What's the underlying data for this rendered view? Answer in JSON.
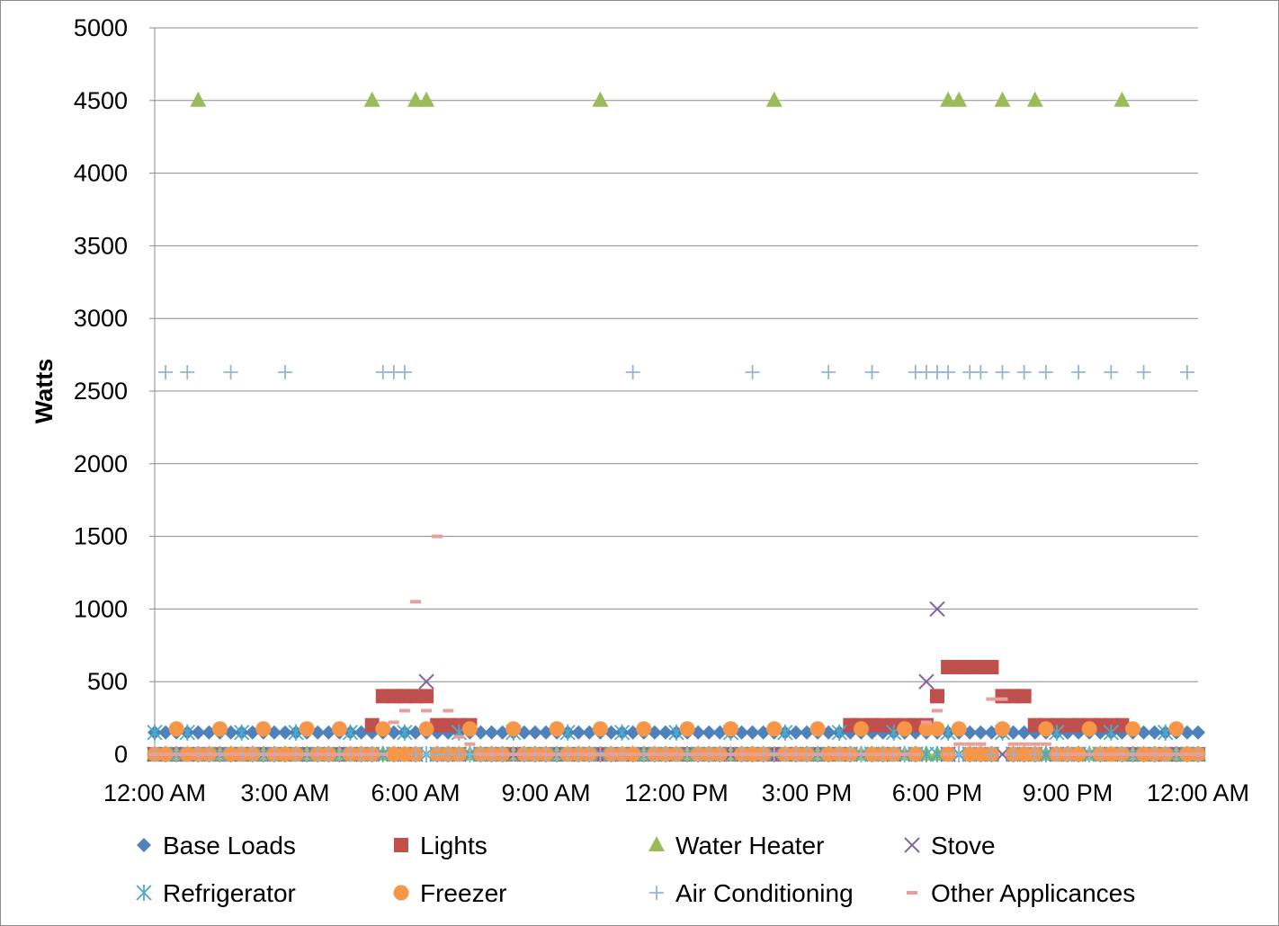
{
  "chart_data": {
    "type": "scatter",
    "title": "",
    "xlabel": "",
    "ylabel": "Watts",
    "ylim": [
      0,
      5000
    ],
    "yticks": [
      0,
      500,
      1000,
      1500,
      2000,
      2500,
      3000,
      3500,
      4000,
      4500,
      5000
    ],
    "xlim": [
      0,
      24
    ],
    "xticks": [
      {
        "value": 0,
        "label": "12:00 AM"
      },
      {
        "value": 3,
        "label": "3:00 AM"
      },
      {
        "value": 6,
        "label": "6:00 AM"
      },
      {
        "value": 9,
        "label": "9:00 AM"
      },
      {
        "value": 12,
        "label": "12:00 PM"
      },
      {
        "value": 15,
        "label": "3:00 PM"
      },
      {
        "value": 18,
        "label": "6:00 PM"
      },
      {
        "value": 21,
        "label": "9:00 PM"
      },
      {
        "value": 24,
        "label": "12:00 AM"
      }
    ],
    "grid": "horizontal",
    "legend_position": "bottom",
    "x_step_hours": 0.25,
    "series": [
      {
        "name": "Base Loads",
        "marker": "diamond",
        "color": "#4f81bd",
        "base": 150,
        "overrides": []
      },
      {
        "name": "Lights",
        "marker": "square",
        "color": "#c0504d",
        "base": 0,
        "overrides": [
          {
            "x_from": 5.0,
            "x_to": 5.25,
            "y": 200
          },
          {
            "x_from": 5.25,
            "x_to": 6.5,
            "y": 400
          },
          {
            "x_from": 6.5,
            "x_to": 7.25,
            "y": 200
          },
          {
            "x_from": 16.0,
            "x_to": 16.25,
            "y": 200
          },
          {
            "x_from": 16.5,
            "x_to": 16.75,
            "y": 200
          },
          {
            "x_from": 17.0,
            "x_to": 17.75,
            "y": 200
          },
          {
            "x_from": 18.0,
            "x_to": 18.25,
            "y": 400
          },
          {
            "x_from": 18.25,
            "x_to": 19.5,
            "y": 600
          },
          {
            "x_from": 19.5,
            "x_to": 20.5,
            "y": 400
          },
          {
            "x_from": 20.25,
            "x_to": 22.25,
            "y": 200
          }
        ]
      },
      {
        "name": "Water Heater",
        "marker": "triangle",
        "color": "#9bbb59",
        "base": 0,
        "overrides": [
          {
            "x_from": 1.0,
            "x_to": 1.0,
            "y": 4500
          },
          {
            "x_from": 5.0,
            "x_to": 5.0,
            "y": 4500
          },
          {
            "x_from": 6.0,
            "x_to": 6.0,
            "y": 4500
          },
          {
            "x_from": 6.25,
            "x_to": 6.25,
            "y": 4500
          },
          {
            "x_from": 10.25,
            "x_to": 10.25,
            "y": 4500
          },
          {
            "x_from": 14.25,
            "x_to": 14.25,
            "y": 4500
          },
          {
            "x_from": 18.25,
            "x_to": 18.25,
            "y": 4500
          },
          {
            "x_from": 18.5,
            "x_to": 18.5,
            "y": 4500
          },
          {
            "x_from": 19.5,
            "x_to": 19.5,
            "y": 4500
          },
          {
            "x_from": 20.25,
            "x_to": 20.25,
            "y": 4500
          },
          {
            "x_from": 22.25,
            "x_to": 22.25,
            "y": 4500
          }
        ]
      },
      {
        "name": "Stove",
        "marker": "x",
        "color": "#8064a2",
        "base": 0,
        "overrides": [
          {
            "x_from": 6.25,
            "x_to": 6.25,
            "y": 500
          },
          {
            "x_from": 17.75,
            "x_to": 17.75,
            "y": 500
          },
          {
            "x_from": 18.0,
            "x_to": 18.0,
            "y": 1000
          }
        ]
      },
      {
        "name": "Refrigerator",
        "marker": "asterisk",
        "color": "#4bacc6",
        "base": 0,
        "overrides": [
          {
            "x_from": 0.0,
            "x_to": 0.0,
            "y": 150
          },
          {
            "x_from": 0.75,
            "x_to": 0.75,
            "y": 150
          },
          {
            "x_from": 2.0,
            "x_to": 2.0,
            "y": 150
          },
          {
            "x_from": 3.25,
            "x_to": 3.25,
            "y": 150
          },
          {
            "x_from": 4.5,
            "x_to": 4.5,
            "y": 150
          },
          {
            "x_from": 5.75,
            "x_to": 5.75,
            "y": 150
          },
          {
            "x_from": 7.0,
            "x_to": 7.0,
            "y": 150
          },
          {
            "x_from": 8.25,
            "x_to": 8.25,
            "y": 150
          },
          {
            "x_from": 9.5,
            "x_to": 9.5,
            "y": 150
          },
          {
            "x_from": 10.75,
            "x_to": 10.75,
            "y": 150
          },
          {
            "x_from": 12.0,
            "x_to": 12.0,
            "y": 150
          },
          {
            "x_from": 13.25,
            "x_to": 13.25,
            "y": 150
          },
          {
            "x_from": 14.5,
            "x_to": 14.5,
            "y": 150
          },
          {
            "x_from": 15.75,
            "x_to": 15.75,
            "y": 150
          },
          {
            "x_from": 17.0,
            "x_to": 17.0,
            "y": 150
          },
          {
            "x_from": 18.25,
            "x_to": 18.25,
            "y": 150
          },
          {
            "x_from": 19.5,
            "x_to": 19.5,
            "y": 150
          },
          {
            "x_from": 20.75,
            "x_to": 20.75,
            "y": 150
          },
          {
            "x_from": 22.0,
            "x_to": 22.0,
            "y": 150
          },
          {
            "x_from": 23.25,
            "x_to": 23.25,
            "y": 150
          }
        ]
      },
      {
        "name": "Freezer",
        "marker": "circle",
        "color": "#f79646",
        "base": 0,
        "overrides": [
          {
            "x_from": 0.5,
            "x_to": 0.5,
            "y": 175
          },
          {
            "x_from": 1.5,
            "x_to": 1.5,
            "y": 175
          },
          {
            "x_from": 2.5,
            "x_to": 2.5,
            "y": 175
          },
          {
            "x_from": 3.5,
            "x_to": 3.5,
            "y": 175
          },
          {
            "x_from": 4.25,
            "x_to": 4.25,
            "y": 175
          },
          {
            "x_from": 5.25,
            "x_to": 5.25,
            "y": 175
          },
          {
            "x_from": 6.25,
            "x_to": 6.25,
            "y": 175
          },
          {
            "x_from": 7.25,
            "x_to": 7.25,
            "y": 175
          },
          {
            "x_from": 8.25,
            "x_to": 8.25,
            "y": 175
          },
          {
            "x_from": 9.25,
            "x_to": 9.25,
            "y": 175
          },
          {
            "x_from": 10.25,
            "x_to": 10.25,
            "y": 175
          },
          {
            "x_from": 11.25,
            "x_to": 11.25,
            "y": 175
          },
          {
            "x_from": 12.25,
            "x_to": 12.25,
            "y": 175
          },
          {
            "x_from": 13.25,
            "x_to": 13.25,
            "y": 175
          },
          {
            "x_from": 14.25,
            "x_to": 14.25,
            "y": 175
          },
          {
            "x_from": 15.25,
            "x_to": 15.25,
            "y": 175
          },
          {
            "x_from": 16.25,
            "x_to": 16.25,
            "y": 175
          },
          {
            "x_from": 17.25,
            "x_to": 17.25,
            "y": 175
          },
          {
            "x_from": 17.75,
            "x_to": 17.75,
            "y": 175
          },
          {
            "x_from": 18.0,
            "x_to": 18.0,
            "y": 175
          },
          {
            "x_from": 18.5,
            "x_to": 18.5,
            "y": 175
          },
          {
            "x_from": 19.5,
            "x_to": 19.5,
            "y": 175
          },
          {
            "x_from": 20.5,
            "x_to": 20.5,
            "y": 175
          },
          {
            "x_from": 21.5,
            "x_to": 21.5,
            "y": 175
          },
          {
            "x_from": 22.5,
            "x_to": 22.5,
            "y": 175
          },
          {
            "x_from": 23.5,
            "x_to": 23.5,
            "y": 175
          }
        ]
      },
      {
        "name": "Air Conditioning",
        "marker": "plus",
        "color": "#95b3d7",
        "base": 0,
        "overrides": [
          {
            "x_from": 0.25,
            "x_to": 0.25,
            "y": 2630
          },
          {
            "x_from": 0.75,
            "x_to": 0.75,
            "y": 2630
          },
          {
            "x_from": 1.75,
            "x_to": 1.75,
            "y": 2630
          },
          {
            "x_from": 3.0,
            "x_to": 3.0,
            "y": 2630
          },
          {
            "x_from": 5.25,
            "x_to": 5.25,
            "y": 2630
          },
          {
            "x_from": 5.5,
            "x_to": 5.5,
            "y": 2630
          },
          {
            "x_from": 5.75,
            "x_to": 5.75,
            "y": 2630
          },
          {
            "x_from": 11.0,
            "x_to": 11.0,
            "y": 2630
          },
          {
            "x_from": 13.75,
            "x_to": 13.75,
            "y": 2630
          },
          {
            "x_from": 15.5,
            "x_to": 15.5,
            "y": 2630
          },
          {
            "x_from": 16.5,
            "x_to": 16.5,
            "y": 2630
          },
          {
            "x_from": 17.5,
            "x_to": 17.5,
            "y": 2630
          },
          {
            "x_from": 17.75,
            "x_to": 17.75,
            "y": 2630
          },
          {
            "x_from": 18.0,
            "x_to": 18.0,
            "y": 2630
          },
          {
            "x_from": 18.25,
            "x_to": 18.25,
            "y": 2630
          },
          {
            "x_from": 18.75,
            "x_to": 18.75,
            "y": 2630
          },
          {
            "x_from": 19.0,
            "x_to": 19.0,
            "y": 2630
          },
          {
            "x_from": 19.5,
            "x_to": 19.5,
            "y": 2630
          },
          {
            "x_from": 20.0,
            "x_to": 20.0,
            "y": 2630
          },
          {
            "x_from": 20.5,
            "x_to": 20.5,
            "y": 2630
          },
          {
            "x_from": 21.25,
            "x_to": 21.25,
            "y": 2630
          },
          {
            "x_from": 22.0,
            "x_to": 22.0,
            "y": 2630
          },
          {
            "x_from": 22.75,
            "x_to": 22.75,
            "y": 2630
          },
          {
            "x_from": 23.75,
            "x_to": 23.75,
            "y": 2630
          }
        ]
      },
      {
        "name": "Other Applicances",
        "marker": "dash",
        "color": "#e6a09c",
        "base": 0,
        "overrides": [
          {
            "x_from": 5.5,
            "x_to": 5.5,
            "y": 220
          },
          {
            "x_from": 5.75,
            "x_to": 5.75,
            "y": 300
          },
          {
            "x_from": 6.0,
            "x_to": 6.0,
            "y": 1050
          },
          {
            "x_from": 6.25,
            "x_to": 6.25,
            "y": 300
          },
          {
            "x_from": 6.5,
            "x_to": 6.5,
            "y": 1500
          },
          {
            "x_from": 6.75,
            "x_to": 6.75,
            "y": 300
          },
          {
            "x_from": 7.0,
            "x_to": 7.0,
            "y": 120
          },
          {
            "x_from": 7.25,
            "x_to": 7.25,
            "y": 70
          },
          {
            "x_from": 17.75,
            "x_to": 17.75,
            "y": 220
          },
          {
            "x_from": 18.0,
            "x_to": 18.0,
            "y": 300
          },
          {
            "x_from": 18.5,
            "x_to": 19.25,
            "y": 70
          },
          {
            "x_from": 19.25,
            "x_to": 19.5,
            "y": 380
          },
          {
            "x_from": 19.75,
            "x_to": 20.5,
            "y": 70
          }
        ]
      }
    ]
  }
}
